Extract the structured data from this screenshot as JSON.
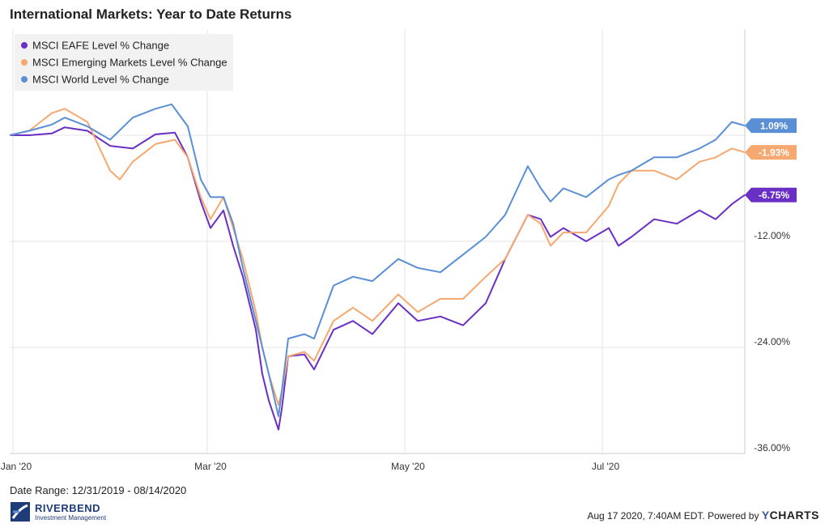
{
  "title": "International Markets: Year to Date Returns",
  "footer": {
    "date_range": "Date Range: 12/31/2019 - 08/14/2020",
    "timestamp": "Aug 17 2020, 7:40AM EDT.",
    "powered_by": "Powered by",
    "brand_y": "Y",
    "brand_rest": "CHARTS"
  },
  "logo": {
    "name": "RIVERBEND",
    "sub": "Investment Management"
  },
  "chart_data": {
    "type": "line",
    "xlim": [
      "2019-12-31",
      "2020-08-14"
    ],
    "ylim": [
      -36,
      12
    ],
    "y_ticks": [
      {
        "value": -12,
        "label": "-12.00%"
      },
      {
        "value": -24,
        "label": "-24.00%"
      },
      {
        "value": -36,
        "label": "-36.00%"
      }
    ],
    "x_ticks": [
      {
        "date": "2020-01-01",
        "label": "Jan '20"
      },
      {
        "date": "2020-03-01",
        "label": "Mar '20"
      },
      {
        "date": "2020-05-01",
        "label": "May '20"
      },
      {
        "date": "2020-07-01",
        "label": "Jul '20"
      }
    ],
    "grid": true,
    "legend": "top-left",
    "series": [
      {
        "name": "MSCI EAFE Level % Change",
        "color": "#6a2fc4",
        "end_label": "-6.75%",
        "points": [
          [
            "2019-12-31",
            0
          ],
          [
            "2020-01-06",
            0
          ],
          [
            "2020-01-13",
            0.2
          ],
          [
            "2020-01-17",
            0.9
          ],
          [
            "2020-01-24",
            0.5
          ],
          [
            "2020-01-31",
            -1.2
          ],
          [
            "2020-02-07",
            -1.5
          ],
          [
            "2020-02-14",
            0.1
          ],
          [
            "2020-02-20",
            0.3
          ],
          [
            "2020-02-24",
            -2.5
          ],
          [
            "2020-02-28",
            -7.5
          ],
          [
            "2020-03-02",
            -10.5
          ],
          [
            "2020-03-06",
            -8.5
          ],
          [
            "2020-03-09",
            -12.5
          ],
          [
            "2020-03-12",
            -16
          ],
          [
            "2020-03-16",
            -22
          ],
          [
            "2020-03-18",
            -27
          ],
          [
            "2020-03-20",
            -30
          ],
          [
            "2020-03-23",
            -33.3
          ],
          [
            "2020-03-24",
            -31
          ],
          [
            "2020-03-26",
            -25
          ],
          [
            "2020-03-31",
            -24.8
          ],
          [
            "2020-04-03",
            -26.5
          ],
          [
            "2020-04-09",
            -22
          ],
          [
            "2020-04-15",
            -21
          ],
          [
            "2020-04-21",
            -22.5
          ],
          [
            "2020-04-29",
            -19
          ],
          [
            "2020-05-05",
            -21
          ],
          [
            "2020-05-12",
            -20.5
          ],
          [
            "2020-05-19",
            -21.5
          ],
          [
            "2020-05-26",
            -19
          ],
          [
            "2020-06-01",
            -14
          ],
          [
            "2020-06-08",
            -9
          ],
          [
            "2020-06-12",
            -9.5
          ],
          [
            "2020-06-15",
            -11.5
          ],
          [
            "2020-06-19",
            -10.5
          ],
          [
            "2020-06-26",
            -12
          ],
          [
            "2020-07-03",
            -10.5
          ],
          [
            "2020-07-06",
            -12.5
          ],
          [
            "2020-07-10",
            -11.5
          ],
          [
            "2020-07-17",
            -9.5
          ],
          [
            "2020-07-24",
            -10
          ],
          [
            "2020-07-31",
            -8.5
          ],
          [
            "2020-08-05",
            -9.5
          ],
          [
            "2020-08-10",
            -7.8
          ],
          [
            "2020-08-14",
            -6.75
          ]
        ]
      },
      {
        "name": "MSCI Emerging Markets Level % Change",
        "color": "#f5a86f",
        "end_label": "-1.93%",
        "points": [
          [
            "2019-12-31",
            0
          ],
          [
            "2020-01-06",
            0.5
          ],
          [
            "2020-01-13",
            2.5
          ],
          [
            "2020-01-17",
            3
          ],
          [
            "2020-01-24",
            1.5
          ],
          [
            "2020-01-31",
            -4
          ],
          [
            "2020-02-03",
            -5
          ],
          [
            "2020-02-07",
            -3
          ],
          [
            "2020-02-14",
            -1
          ],
          [
            "2020-02-20",
            -0.5
          ],
          [
            "2020-02-24",
            -2.5
          ],
          [
            "2020-02-28",
            -7
          ],
          [
            "2020-03-02",
            -9.5
          ],
          [
            "2020-03-06",
            -7
          ],
          [
            "2020-03-09",
            -10.5
          ],
          [
            "2020-03-12",
            -14
          ],
          [
            "2020-03-16",
            -20
          ],
          [
            "2020-03-18",
            -24
          ],
          [
            "2020-03-20",
            -27
          ],
          [
            "2020-03-23",
            -30.5
          ],
          [
            "2020-03-24",
            -29
          ],
          [
            "2020-03-26",
            -25
          ],
          [
            "2020-03-31",
            -24.5
          ],
          [
            "2020-04-03",
            -25.5
          ],
          [
            "2020-04-09",
            -21
          ],
          [
            "2020-04-15",
            -19.5
          ],
          [
            "2020-04-21",
            -21
          ],
          [
            "2020-04-29",
            -18
          ],
          [
            "2020-05-05",
            -20
          ],
          [
            "2020-05-12",
            -18.5
          ],
          [
            "2020-05-19",
            -18.5
          ],
          [
            "2020-05-26",
            -16
          ],
          [
            "2020-06-01",
            -14
          ],
          [
            "2020-06-08",
            -9
          ],
          [
            "2020-06-12",
            -10
          ],
          [
            "2020-06-15",
            -12.5
          ],
          [
            "2020-06-19",
            -11
          ],
          [
            "2020-06-26",
            -11
          ],
          [
            "2020-07-03",
            -8
          ],
          [
            "2020-07-06",
            -5.5
          ],
          [
            "2020-07-10",
            -4
          ],
          [
            "2020-07-17",
            -4
          ],
          [
            "2020-07-24",
            -5
          ],
          [
            "2020-07-31",
            -3
          ],
          [
            "2020-08-05",
            -2.5
          ],
          [
            "2020-08-10",
            -1.5
          ],
          [
            "2020-08-14",
            -1.93
          ]
        ]
      },
      {
        "name": "MSCI World Level % Change",
        "color": "#5a8fd6",
        "end_label": "1.09%",
        "points": [
          [
            "2019-12-31",
            0
          ],
          [
            "2020-01-06",
            0.5
          ],
          [
            "2020-01-13",
            1.2
          ],
          [
            "2020-01-17",
            2
          ],
          [
            "2020-01-24",
            1
          ],
          [
            "2020-01-31",
            -0.5
          ],
          [
            "2020-02-07",
            2
          ],
          [
            "2020-02-14",
            3
          ],
          [
            "2020-02-19",
            3.5
          ],
          [
            "2020-02-24",
            1
          ],
          [
            "2020-02-28",
            -5
          ],
          [
            "2020-03-02",
            -7
          ],
          [
            "2020-03-06",
            -7
          ],
          [
            "2020-03-09",
            -10
          ],
          [
            "2020-03-12",
            -15
          ],
          [
            "2020-03-16",
            -21
          ],
          [
            "2020-03-18",
            -24
          ],
          [
            "2020-03-20",
            -27
          ],
          [
            "2020-03-23",
            -31.8
          ],
          [
            "2020-03-24",
            -29
          ],
          [
            "2020-03-26",
            -23
          ],
          [
            "2020-03-31",
            -22.5
          ],
          [
            "2020-04-03",
            -23
          ],
          [
            "2020-04-09",
            -17
          ],
          [
            "2020-04-15",
            -16
          ],
          [
            "2020-04-21",
            -16.5
          ],
          [
            "2020-04-29",
            -14
          ],
          [
            "2020-05-05",
            -15
          ],
          [
            "2020-05-12",
            -15.5
          ],
          [
            "2020-05-19",
            -13.5
          ],
          [
            "2020-05-26",
            -11.5
          ],
          [
            "2020-06-01",
            -9
          ],
          [
            "2020-06-08",
            -3.5
          ],
          [
            "2020-06-12",
            -6
          ],
          [
            "2020-06-15",
            -7.5
          ],
          [
            "2020-06-19",
            -6
          ],
          [
            "2020-06-26",
            -7
          ],
          [
            "2020-07-03",
            -5
          ],
          [
            "2020-07-06",
            -4.5
          ],
          [
            "2020-07-10",
            -4
          ],
          [
            "2020-07-17",
            -2.5
          ],
          [
            "2020-07-24",
            -2.5
          ],
          [
            "2020-07-31",
            -1.5
          ],
          [
            "2020-08-05",
            -0.5
          ],
          [
            "2020-08-10",
            1.5
          ],
          [
            "2020-08-14",
            1.09
          ]
        ]
      }
    ]
  }
}
